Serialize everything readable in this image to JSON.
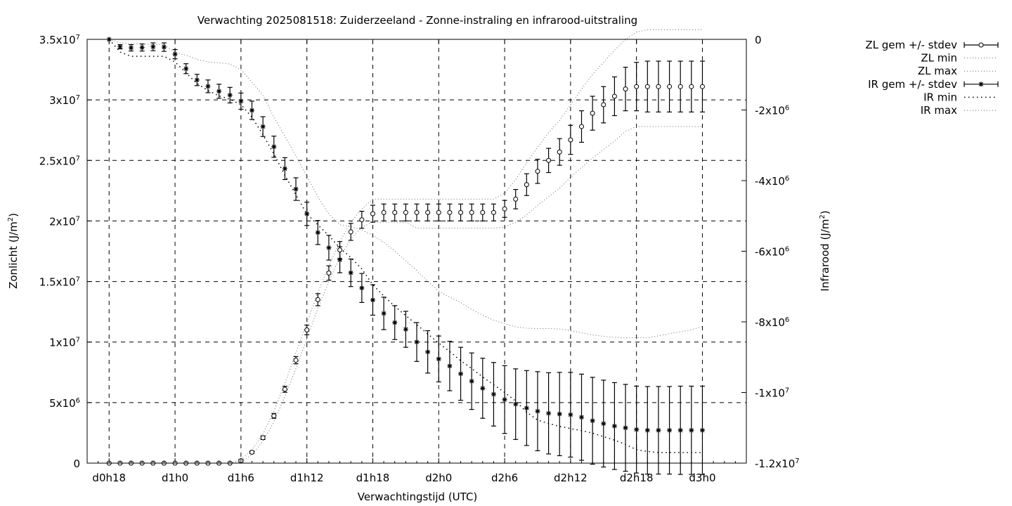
{
  "chart_data": {
    "type": "line",
    "title": "Verwachting 2025081518: Zuiderzeeland - Zonne-instraling en infrarood-uitstraling",
    "xlabel": "Verwachtingstijd (UTC)",
    "ylabel": "Zonlicht (J/m²)",
    "ylabel_main": "Zonlicht (J/m",
    "ylabel_sup": "2",
    "ylabel_end": ")",
    "y2label": "Infrarood (J/m²)",
    "y2label_main": "Infrarood (J/m",
    "y2label_sup": "2",
    "y2label_end": ")",
    "x_ticks": [
      "d0h18",
      "d1h0",
      "d1h6",
      "d1h12",
      "d1h18",
      "d2h0",
      "d2h6",
      "d2h12",
      "d2h18",
      "d3h0"
    ],
    "x_range_hours": [
      16,
      76
    ],
    "ylim": [
      0,
      35000000
    ],
    "y2lim": [
      -12000000,
      0
    ],
    "y_ticks": [
      {
        "value": 0,
        "base": "0",
        "exp": ""
      },
      {
        "value": 5000000,
        "base": "5x10",
        "exp": "6"
      },
      {
        "value": 10000000,
        "base": "1x10",
        "exp": "7"
      },
      {
        "value": 15000000,
        "base": "1.5x10",
        "exp": "7"
      },
      {
        "value": 20000000,
        "base": "2x10",
        "exp": "7"
      },
      {
        "value": 25000000,
        "base": "2.5x10",
        "exp": "7"
      },
      {
        "value": 30000000,
        "base": "3x10",
        "exp": "7"
      },
      {
        "value": 35000000,
        "base": "3.5x10",
        "exp": "7"
      }
    ],
    "y2_ticks": [
      {
        "value": 0,
        "base": "0",
        "exp": ""
      },
      {
        "value": -2000000,
        "base": "-2x10",
        "exp": "6"
      },
      {
        "value": -4000000,
        "base": "-4x10",
        "exp": "6"
      },
      {
        "value": -6000000,
        "base": "-6x10",
        "exp": "6"
      },
      {
        "value": -8000000,
        "base": "-8x10",
        "exp": "6"
      },
      {
        "value": -10000000,
        "base": "-1x10",
        "exp": "7"
      },
      {
        "value": -12000000,
        "base": "-1.2x10",
        "exp": "7"
      }
    ],
    "grid": true,
    "legend_position": "top-right, outside plot",
    "legend": [
      {
        "label": "ZL gem +/- stdev",
        "style": "errorbar-circle"
      },
      {
        "label": "ZL min",
        "style": "dotted"
      },
      {
        "label": "ZL max",
        "style": "dotted"
      },
      {
        "label": "IR gem +/- stdev",
        "style": "errorbar-star"
      },
      {
        "label": "IR min",
        "style": "dotted-black"
      },
      {
        "label": "IR max",
        "style": "dotted"
      }
    ],
    "x_hours": [
      18,
      19,
      20,
      21,
      22,
      23,
      24,
      25,
      26,
      27,
      28,
      29,
      30,
      31,
      32,
      33,
      34,
      35,
      36,
      37,
      38,
      39,
      40,
      41,
      42,
      43,
      44,
      45,
      46,
      47,
      48,
      49,
      50,
      51,
      52,
      53,
      54,
      55,
      56,
      57,
      58,
      59,
      60,
      61,
      62,
      63,
      64,
      65,
      66,
      67,
      68,
      69,
      70,
      71,
      72
    ],
    "series": [
      {
        "name": "ZL gem +/- stdev",
        "axis": "y",
        "marker": "circle",
        "values": [
          0,
          0,
          0,
          0,
          0,
          0,
          0,
          0,
          0,
          0,
          0,
          0,
          200000,
          900000,
          2100000,
          3900000,
          6100000,
          8500000,
          11000000,
          13500000,
          15700000,
          17600000,
          19100000,
          20100000,
          20600000,
          20700000,
          20700000,
          20700000,
          20700000,
          20700000,
          20700000,
          20700000,
          20700000,
          20700000,
          20700000,
          20700000,
          21000000,
          21800000,
          23000000,
          24100000,
          25000000,
          25700000,
          26700000,
          27800000,
          28900000,
          29600000,
          30300000,
          30900000,
          31100000,
          31100000,
          31100000,
          31100000,
          31100000,
          31100000,
          31100000
        ],
        "stdev": [
          0,
          0,
          0,
          0,
          0,
          0,
          0,
          0,
          0,
          0,
          0,
          0,
          100000,
          100000,
          150000,
          200000,
          250000,
          300000,
          400000,
          500000,
          600000,
          700000,
          700000,
          700000,
          700000,
          700000,
          700000,
          700000,
          700000,
          700000,
          700000,
          700000,
          700000,
          700000,
          700000,
          700000,
          700000,
          800000,
          900000,
          1000000,
          1000000,
          1100000,
          1200000,
          1300000,
          1400000,
          1500000,
          1600000,
          1800000,
          2000000,
          2100000,
          2100000,
          2100000,
          2100000,
          2100000,
          2100000
        ]
      },
      {
        "name": "ZL min",
        "axis": "y",
        "style": "dotted",
        "values": [
          0,
          0,
          0,
          0,
          0,
          0,
          0,
          0,
          0,
          0,
          0,
          0,
          100000,
          700000,
          1800000,
          3400000,
          5500000,
          7800000,
          10300000,
          12800000,
          15000000,
          17000000,
          18500000,
          19500000,
          19900000,
          19900000,
          19900000,
          19900000,
          19400000,
          19400000,
          19400000,
          19400000,
          19400000,
          19400000,
          19400000,
          19400000,
          19500000,
          19900000,
          20500000,
          21300000,
          22000000,
          22700000,
          23600000,
          24400000,
          25200000,
          25900000,
          26600000,
          27400000,
          27800000,
          27800000,
          27800000,
          27800000,
          27800000,
          27800000,
          27800000
        ]
      },
      {
        "name": "ZL max",
        "axis": "y",
        "style": "dotted",
        "values": [
          0,
          0,
          0,
          0,
          0,
          0,
          0,
          0,
          0,
          0,
          0,
          0,
          300000,
          1100000,
          2400000,
          4300000,
          6600000,
          9100000,
          11600000,
          14100000,
          16300000,
          18300000,
          19900000,
          21000000,
          21800000,
          21800000,
          21800000,
          21800000,
          21800000,
          21800000,
          21800000,
          21800000,
          21800000,
          21800000,
          21800000,
          21800000,
          22300000,
          23400000,
          24800000,
          26100000,
          27300000,
          28300000,
          29600000,
          30900000,
          32100000,
          33100000,
          34100000,
          35000000,
          35600000,
          35800000,
          35800000,
          35800000,
          35800000,
          35800000,
          35800000
        ]
      },
      {
        "name": "IR gem +/- stdev",
        "axis": "y2",
        "marker": "star",
        "values": [
          0,
          -210000,
          -240000,
          -230000,
          -210000,
          -220000,
          -420000,
          -830000,
          -1150000,
          -1330000,
          -1470000,
          -1580000,
          -1750000,
          -2010000,
          -2470000,
          -3040000,
          -3660000,
          -4240000,
          -4940000,
          -5470000,
          -5900000,
          -6240000,
          -6610000,
          -7040000,
          -7380000,
          -7760000,
          -8020000,
          -8210000,
          -8570000,
          -8850000,
          -9050000,
          -9250000,
          -9470000,
          -9680000,
          -9880000,
          -10050000,
          -10200000,
          -10330000,
          -10440000,
          -10530000,
          -10590000,
          -10610000,
          -10630000,
          -10700000,
          -10800000,
          -10880000,
          -10950000,
          -11000000,
          -11050000,
          -11070000,
          -11070000,
          -11070000,
          -11070000,
          -11070000,
          -11070000
        ],
        "stdev": [
          0,
          60000,
          90000,
          100000,
          110000,
          120000,
          130000,
          140000,
          160000,
          180000,
          200000,
          220000,
          230000,
          260000,
          280000,
          300000,
          310000,
          320000,
          330000,
          340000,
          350000,
          370000,
          390000,
          410000,
          430000,
          460000,
          480000,
          510000,
          550000,
          600000,
          650000,
          700000,
          750000,
          800000,
          850000,
          900000,
          960000,
          1000000,
          1060000,
          1120000,
          1150000,
          1180000,
          1200000,
          1220000,
          1230000,
          1230000,
          1230000,
          1230000,
          1230000,
          1240000,
          1240000,
          1240000,
          1250000,
          1250000,
          1250000
        ]
      },
      {
        "name": "IR min",
        "axis": "y2",
        "style": "dotted-black",
        "values": [
          0,
          -360000,
          -480000,
          -480000,
          -480000,
          -480000,
          -640000,
          -950000,
          -1250000,
          -1450000,
          -1600000,
          -1700000,
          -1850000,
          -2200000,
          -2700000,
          -3250000,
          -3850000,
          -4400000,
          -4950000,
          -5250000,
          -5560000,
          -5900000,
          -6180000,
          -6500000,
          -6950000,
          -7270000,
          -7560000,
          -7820000,
          -8080000,
          -8340000,
          -8600000,
          -8840000,
          -9100000,
          -9320000,
          -9560000,
          -9780000,
          -10000000,
          -10240000,
          -10560000,
          -10780000,
          -10880000,
          -10960000,
          -11020000,
          -11080000,
          -11150000,
          -11250000,
          -11350000,
          -11470000,
          -11620000,
          -11670000,
          -11700000,
          -11700000,
          -11700000,
          -11700000,
          -11700000
        ]
      },
      {
        "name": "IR max",
        "axis": "y2",
        "style": "dotted",
        "values": [
          0,
          -100000,
          -120000,
          -130000,
          -150000,
          -150000,
          -380000,
          -450000,
          -570000,
          -640000,
          -660000,
          -700000,
          -860000,
          -1210000,
          -1590000,
          -2200000,
          -2750000,
          -3300000,
          -3880000,
          -4450000,
          -4950000,
          -5250000,
          -5300000,
          -5400000,
          -5550000,
          -5750000,
          -6000000,
          -6270000,
          -6550000,
          -6850000,
          -7130000,
          -7300000,
          -7450000,
          -7650000,
          -7810000,
          -7950000,
          -8050000,
          -8140000,
          -8180000,
          -8190000,
          -8190000,
          -8200000,
          -8250000,
          -8310000,
          -8370000,
          -8410000,
          -8440000,
          -8450000,
          -8450000,
          -8450000,
          -8400000,
          -8330000,
          -8280000,
          -8220000,
          -8130000
        ]
      }
    ]
  }
}
